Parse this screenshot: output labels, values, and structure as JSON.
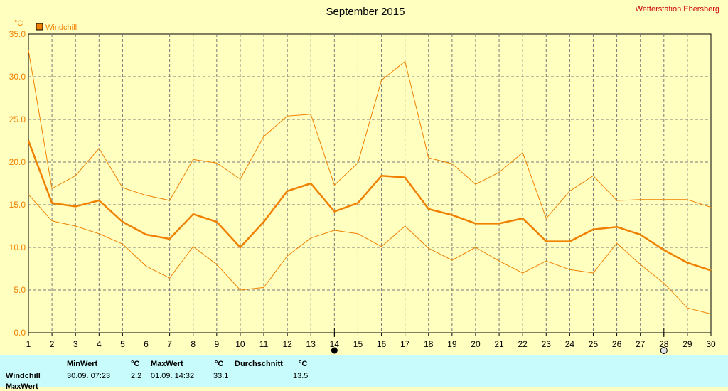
{
  "chart_data": {
    "type": "line",
    "title": "September 2015",
    "station": "Wetterstation Ebersberg",
    "ylabel": "°C",
    "ylim": [
      0,
      35
    ],
    "yticks": [
      "0.0",
      "5.0",
      "10.0",
      "15.0",
      "20.0",
      "25.0",
      "30.0",
      "35.0"
    ],
    "x": [
      "1",
      "2",
      "3",
      "4",
      "5",
      "6",
      "7",
      "8",
      "9",
      "10",
      "11",
      "12",
      "13",
      "14",
      "15",
      "16",
      "17",
      "18",
      "19",
      "20",
      "21",
      "22",
      "23",
      "24",
      "25",
      "26",
      "27",
      "28",
      "29",
      "30"
    ],
    "legend": "Windchill",
    "grid": true,
    "colors": {
      "series": "#f08000",
      "grid": "#7a7a7a",
      "title": "#000000",
      "station": "#cc0000"
    },
    "series": [
      {
        "name": "Windchill",
        "role": "avg",
        "values": [
          22.5,
          15.2,
          14.8,
          15.5,
          13.0,
          11.5,
          11.0,
          13.9,
          13.0,
          10.0,
          13.0,
          16.6,
          17.5,
          14.2,
          15.2,
          18.4,
          18.2,
          14.5,
          13.8,
          12.8,
          12.8,
          13.4,
          10.7,
          10.7,
          12.1,
          12.4,
          11.5,
          9.7,
          8.2,
          7.3
        ]
      },
      {
        "role": "max",
        "values": [
          33.1,
          16.9,
          18.4,
          21.6,
          17.0,
          16.1,
          15.5,
          20.3,
          19.9,
          18.0,
          23.0,
          25.4,
          25.6,
          17.3,
          19.9,
          29.6,
          31.8,
          20.5,
          19.8,
          17.4,
          18.8,
          21.1,
          13.4,
          16.6,
          18.4,
          15.5,
          15.6,
          15.6,
          15.6,
          14.7
        ]
      },
      {
        "role": "min",
        "values": [
          16.2,
          13.1,
          12.5,
          11.6,
          10.4,
          7.8,
          6.4,
          10.1,
          8.0,
          5.0,
          5.3,
          9.0,
          11.1,
          12.0,
          11.6,
          10.1,
          12.5,
          9.9,
          8.5,
          10.0,
          8.4,
          7.0,
          8.4,
          7.4,
          7.0,
          10.5,
          8.0,
          5.8,
          2.9,
          2.2
        ]
      }
    ],
    "markers": [
      {
        "x": 14,
        "type": "filled-circle"
      },
      {
        "x": 28,
        "type": "open-circle"
      }
    ]
  },
  "stats": {
    "row_labels": [
      "Windchill",
      "MaxWert"
    ],
    "min_header": "MinWert",
    "max_header": "MaxWert",
    "avg_header": "Durchschnitt",
    "unit": "°C",
    "min_time": "30.09.  07:23",
    "min_value": "2.2",
    "max_time": "01.09.  14:32",
    "max_value": "33.1",
    "avg_value": "13.5"
  }
}
